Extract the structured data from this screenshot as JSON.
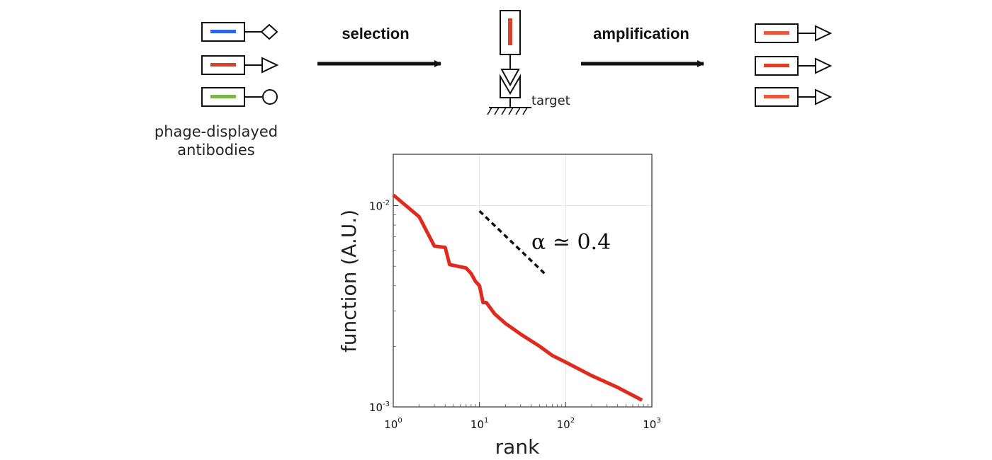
{
  "colors": {
    "blue": "#2f63e8",
    "red": "#d9412d",
    "green": "#7ab648",
    "orange": "#e9573f",
    "curve": "#e02a1e"
  },
  "labels": {
    "library_line1": "phage-displayed",
    "library_line2": "antibodies",
    "selection": "selection",
    "amplification": "amplification",
    "target": "target"
  },
  "icons": {
    "library_tips": [
      "diamond",
      "triangle",
      "circle"
    ],
    "amplified_tips": [
      "triangle",
      "triangle",
      "triangle"
    ],
    "target": "v-shaped-receptor-on-ground"
  },
  "chart_data": {
    "type": "line",
    "title": "",
    "xlabel": "rank",
    "ylabel": "function (A.U.)",
    "xscale": "log",
    "yscale": "log",
    "xlim": [
      1,
      1000
    ],
    "ylim": [
      0.001,
      0.018
    ],
    "xticks": [
      {
        "base": "10",
        "exp": "0"
      },
      {
        "base": "10",
        "exp": "1"
      },
      {
        "base": "10",
        "exp": "2"
      },
      {
        "base": "10",
        "exp": "3"
      }
    ],
    "yticks": [
      {
        "base": "10",
        "exp": "-3"
      },
      {
        "base": "10",
        "exp": "-2"
      }
    ],
    "grid": true,
    "series": [
      {
        "x": [
          1,
          2,
          3,
          4,
          4.5,
          7,
          8,
          9,
          10,
          11,
          12,
          15,
          20,
          30,
          50,
          70,
          100,
          200,
          400,
          770
        ],
        "y": [
          0.0113,
          0.0088,
          0.0063,
          0.0062,
          0.0051,
          0.0049,
          0.0046,
          0.0042,
          0.004,
          0.0033,
          0.0033,
          0.0029,
          0.0026,
          0.0023,
          0.002,
          0.0018,
          0.00167,
          0.00143,
          0.00125,
          0.00108
        ]
      }
    ],
    "reference_line": {
      "label": "α ≃ 0.4",
      "style": "dashed",
      "slope": -0.4,
      "x": [
        10,
        57
      ],
      "y": [
        0.0094,
        0.0046
      ]
    }
  }
}
